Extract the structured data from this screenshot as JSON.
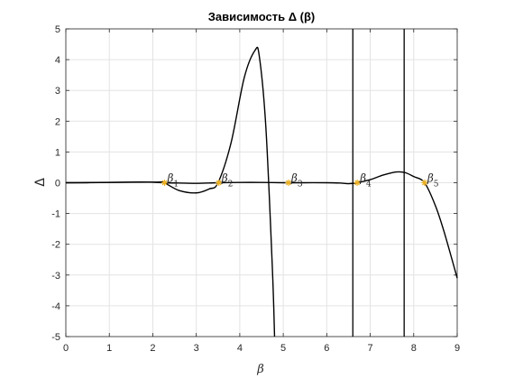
{
  "chart_data": {
    "type": "line",
    "title": "Зависимость Δ (β)",
    "xlabel": "β",
    "ylabel": "Δ",
    "xlim": [
      0,
      9
    ],
    "ylim": [
      -5,
      5
    ],
    "xticks": [
      "0",
      "1",
      "2",
      "3",
      "4",
      "5",
      "6",
      "7",
      "8",
      "9"
    ],
    "yticks": [
      "-5",
      "-4",
      "-3",
      "-2",
      "-1",
      "0",
      "1",
      "2",
      "3",
      "4",
      "5"
    ],
    "grid": true,
    "colors": {
      "line": "#000000",
      "marker": "#EDB120",
      "grid": "#e3e3e3",
      "axis": "#262626"
    },
    "series": [
      {
        "x": [
          0,
          2.0,
          2.25,
          2.6,
          3.0,
          3.3,
          3.5,
          3.8,
          4.1,
          4.35,
          4.45,
          4.6,
          4.75,
          4.8
        ],
        "y": [
          0,
          0.02,
          0.0,
          -0.25,
          -0.33,
          -0.2,
          0.0,
          1.3,
          3.4,
          4.3,
          4.1,
          1.8,
          -2.8,
          -5.0
        ]
      },
      {
        "x": [
          0,
          0.5,
          1.0,
          1.5,
          1.9,
          2.25,
          2.6,
          3.0,
          3.5,
          4.0,
          4.5,
          5.0,
          5.5,
          6.0,
          6.3,
          6.5,
          6.7,
          7.0,
          7.3,
          7.6,
          7.8,
          8.0,
          8.25,
          8.5,
          8.7,
          9.0
        ],
        "y": [
          0,
          0,
          0.01,
          0.02,
          0.02,
          0.0,
          -0.01,
          -0.02,
          0.0,
          0.01,
          0.01,
          0.0,
          0.0,
          0.0,
          -0.01,
          -0.03,
          0.0,
          0.1,
          0.25,
          0.35,
          0.33,
          0.2,
          0.0,
          -0.75,
          -1.6,
          -3.1
        ]
      }
    ],
    "vertical_lines": [
      6.6,
      7.78
    ],
    "roots": [
      {
        "x": 2.27,
        "label": "β",
        "sub": "1"
      },
      {
        "x": 3.52,
        "label": "β",
        "sub": "2"
      },
      {
        "x": 5.12,
        "label": "β",
        "sub": "3"
      },
      {
        "x": 6.7,
        "label": "β",
        "sub": "4"
      },
      {
        "x": 8.25,
        "label": "β",
        "sub": "5"
      }
    ]
  }
}
